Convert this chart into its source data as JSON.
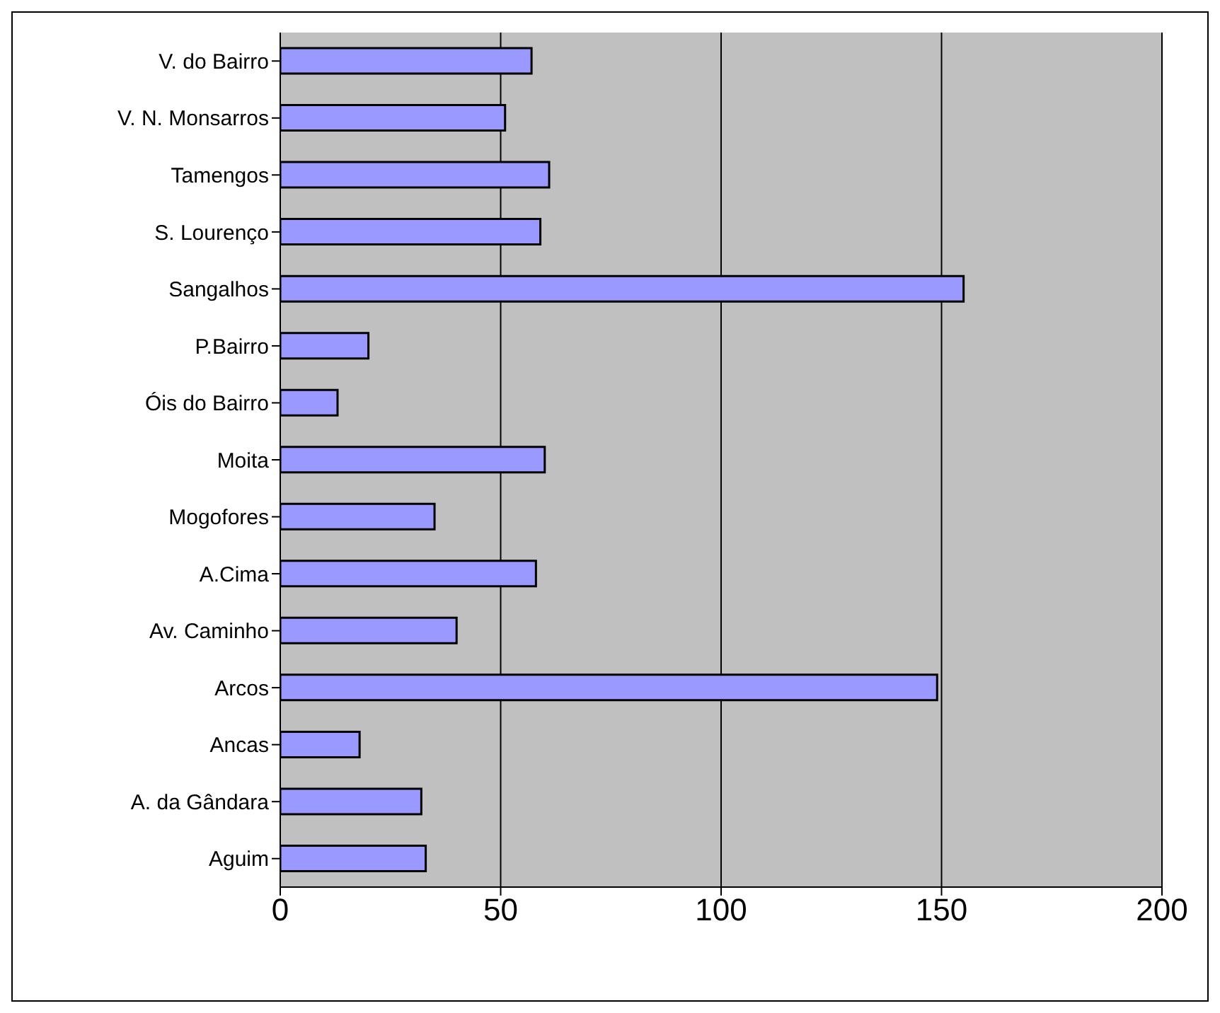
{
  "chart_data": {
    "type": "bar",
    "orientation": "horizontal",
    "categories": [
      "V. do Bairro",
      "V. N. Monsarros",
      "Tamengos",
      "S. Lourenço",
      "Sangalhos",
      "P.Bairro",
      "Óis do Bairro",
      "Moita",
      "Mogofores",
      "A.Cima",
      "Av. Caminho",
      "Arcos",
      "Ancas",
      "A. da Gândara",
      "Aguim"
    ],
    "values": [
      57,
      51,
      61,
      59,
      155,
      20,
      13,
      60,
      35,
      58,
      40,
      149,
      18,
      32,
      33
    ],
    "color": "#9999ff",
    "xlim": [
      0,
      200
    ],
    "xticks": [
      0,
      50,
      100,
      150,
      200
    ],
    "grid": "x"
  }
}
